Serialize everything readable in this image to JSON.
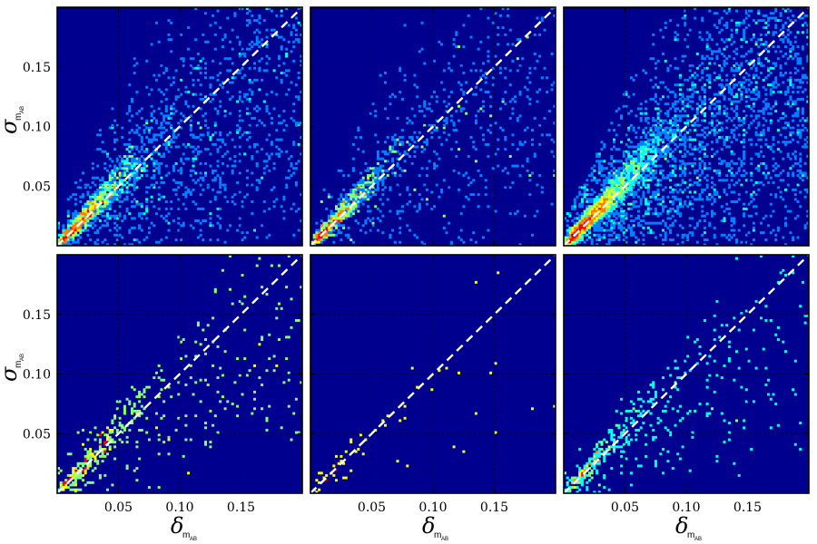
{
  "figure": {
    "x_axis_label": {
      "symbol": "δ",
      "subscript": "m",
      "sub_subscript": "AB"
    },
    "y_axis_label": {
      "symbol": "σ",
      "subscript": "m",
      "sub_subscript": "AB"
    }
  },
  "colors": {
    "background": "#00008f",
    "colormap": [
      "#00008f",
      "#0000ff",
      "#0080ff",
      "#00ffff",
      "#80ff80",
      "#ffff00",
      "#ff8000",
      "#ff0000",
      "#800000"
    ],
    "diagonal_line": "#ffffff",
    "grid": "#000000"
  },
  "chart_data": [
    {
      "type": "heatmap",
      "panel": "top-left",
      "density": "high",
      "xlim": [
        0,
        0.2
      ],
      "ylim": [
        0,
        0.2
      ],
      "xticks": [
        0.05,
        0.1,
        0.15
      ],
      "yticks": [
        0.05,
        0.1,
        0.15
      ],
      "xtick_labels": [],
      "ytick_labels": [
        "0.05",
        "0.10",
        "0.15"
      ],
      "reference_line": {
        "style": "dashed",
        "x": [
          0,
          0.2
        ],
        "y": [
          0,
          0.2
        ]
      },
      "grid": true
    },
    {
      "type": "heatmap",
      "panel": "top-middle",
      "density": "medium",
      "xlim": [
        0,
        0.2
      ],
      "ylim": [
        0,
        0.2
      ],
      "xticks": [
        0.05,
        0.1,
        0.15
      ],
      "yticks": [
        0.05,
        0.1,
        0.15
      ],
      "xtick_labels": [],
      "ytick_labels": [],
      "reference_line": {
        "style": "dashed",
        "x": [
          0,
          0.2
        ],
        "y": [
          0,
          0.2
        ]
      },
      "grid": true
    },
    {
      "type": "heatmap",
      "panel": "top-right",
      "density": "very-high",
      "xlim": [
        0,
        0.2
      ],
      "ylim": [
        0,
        0.2
      ],
      "xticks": [
        0.05,
        0.1,
        0.15
      ],
      "yticks": [
        0.05,
        0.1,
        0.15
      ],
      "xtick_labels": [],
      "ytick_labels": [],
      "reference_line": {
        "style": "dashed",
        "x": [
          0,
          0.2
        ],
        "y": [
          0,
          0.2
        ]
      },
      "grid": true
    },
    {
      "type": "heatmap",
      "panel": "bottom-left",
      "density": "low",
      "xlim": [
        0,
        0.2
      ],
      "ylim": [
        0,
        0.2
      ],
      "xticks": [
        0.05,
        0.1,
        0.15
      ],
      "yticks": [
        0.05,
        0.1,
        0.15
      ],
      "xtick_labels": [
        "0.05",
        "0.10",
        "0.15"
      ],
      "ytick_labels": [
        "0.05",
        "0.10",
        "0.15"
      ],
      "reference_line": {
        "style": "dashed",
        "x": [
          0,
          0.2
        ],
        "y": [
          0,
          0.2
        ]
      },
      "grid": true
    },
    {
      "type": "heatmap",
      "panel": "bottom-middle",
      "density": "very-low",
      "xlim": [
        0,
        0.2
      ],
      "ylim": [
        0,
        0.2
      ],
      "xticks": [
        0.05,
        0.1,
        0.15
      ],
      "yticks": [
        0.05,
        0.1,
        0.15
      ],
      "xtick_labels": [
        "0.05",
        "0.10",
        "0.15"
      ],
      "ytick_labels": [],
      "reference_line": {
        "style": "dashed",
        "x": [
          0,
          0.2
        ],
        "y": [
          0,
          0.2
        ]
      },
      "grid": true
    },
    {
      "type": "heatmap",
      "panel": "bottom-right",
      "density": "low",
      "xlim": [
        0,
        0.2
      ],
      "ylim": [
        0,
        0.2
      ],
      "xticks": [
        0.05,
        0.1,
        0.15
      ],
      "yticks": [
        0.05,
        0.1,
        0.15
      ],
      "xtick_labels": [
        "0.05",
        "0.10",
        "0.15"
      ],
      "ytick_labels": [],
      "reference_line": {
        "style": "dashed",
        "x": [
          0,
          0.2
        ],
        "y": [
          0,
          0.2
        ]
      },
      "grid": true
    }
  ]
}
